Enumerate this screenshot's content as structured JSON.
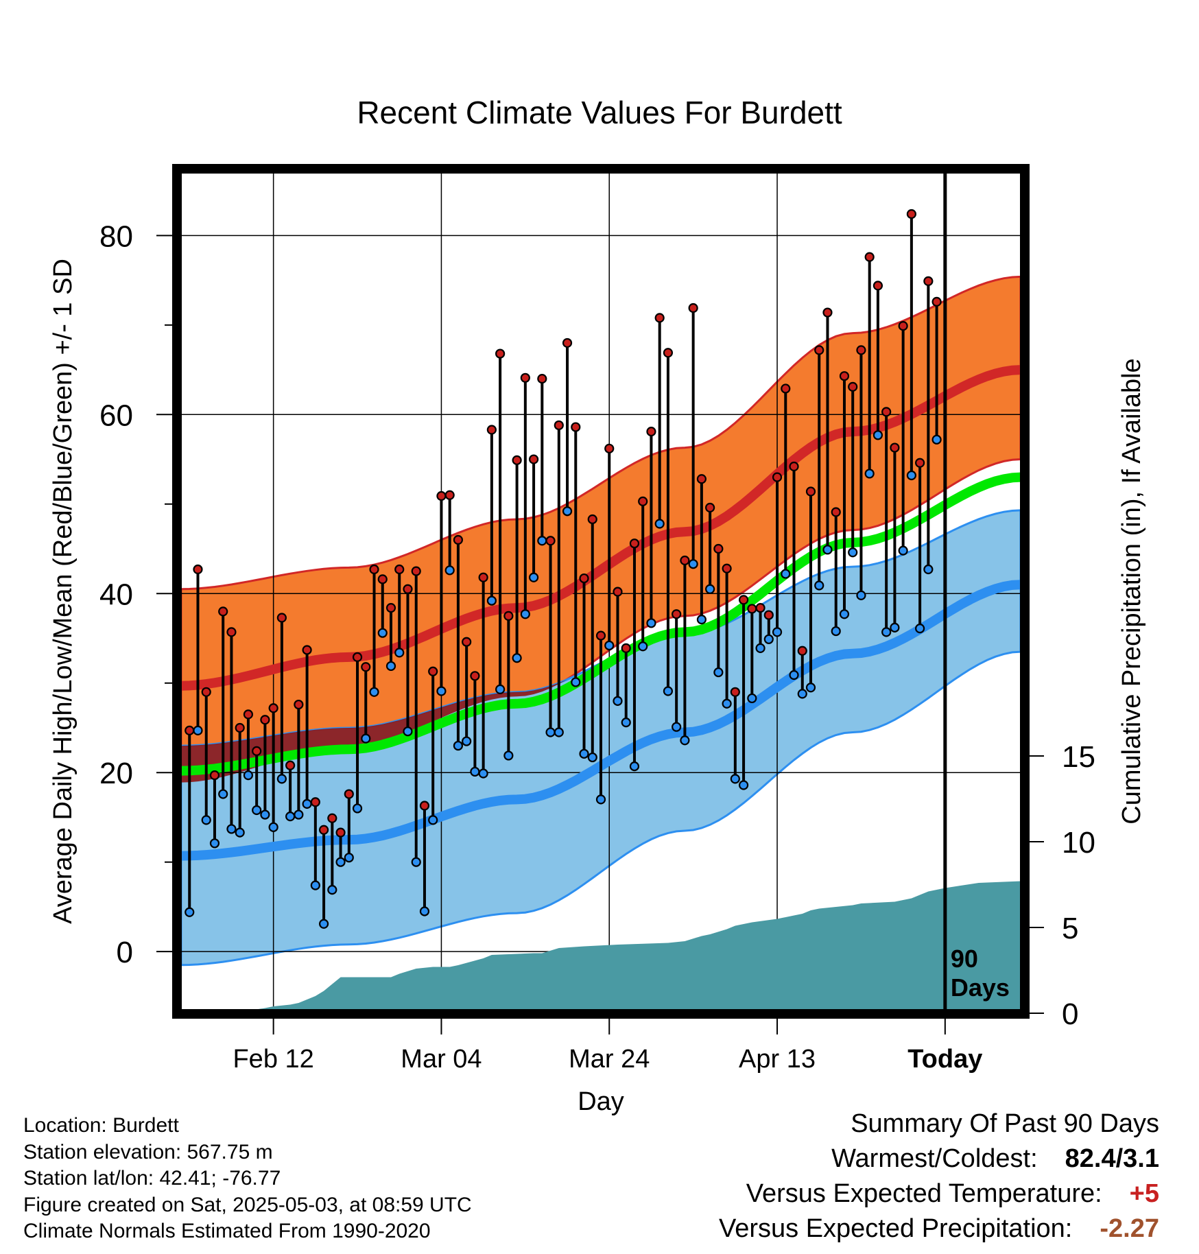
{
  "chart_data": {
    "type": "line",
    "title": "Recent Climate Values For Burdett",
    "xlabel": "Day",
    "ylabel": "Average Daily High/Low/Mean (Red/Blue/Green) +/- 1 SD",
    "y2label": "Cumulative Precipitation (in), If Available",
    "x_tick_labels": [
      "Feb 12",
      "Mar 04",
      "Mar 24",
      "Apr 13",
      "Today"
    ],
    "x_tick_days": [
      11,
      31,
      51,
      71,
      91
    ],
    "y_ticks": [
      0,
      20,
      40,
      60,
      80
    ],
    "y2_ticks": [
      0,
      5,
      10,
      15
    ],
    "ylim": [
      -6.5,
      87
    ],
    "y2lim": [
      0,
      50
    ],
    "xlim": [
      0,
      100
    ],
    "today_annotation": "90\nDays",
    "grid": true,
    "normals": {
      "high_mean_day_pairs": [
        [
          0,
          29.7
        ],
        [
          20,
          32.9
        ],
        [
          40,
          38.4
        ],
        [
          60,
          46.9
        ],
        [
          80,
          58.1
        ],
        [
          100,
          65.0
        ]
      ],
      "high_upper_day_pairs": [
        [
          0,
          40.5
        ],
        [
          20,
          42.9
        ],
        [
          40,
          48.3
        ],
        [
          60,
          56.3
        ],
        [
          80,
          69.1
        ],
        [
          100,
          75.4
        ]
      ],
      "high_lower_day_pairs": [
        [
          0,
          18.9
        ],
        [
          20,
          22.9
        ],
        [
          40,
          28.5
        ],
        [
          60,
          37.5
        ],
        [
          80,
          47.1
        ],
        [
          100,
          55.0
        ]
      ],
      "low_mean_day_pairs": [
        [
          0,
          10.7
        ],
        [
          20,
          12.5
        ],
        [
          40,
          17.0
        ],
        [
          60,
          24.5
        ],
        [
          80,
          33.3
        ],
        [
          100,
          41.0
        ]
      ],
      "low_upper_day_pairs": [
        [
          0,
          23.0
        ],
        [
          20,
          25.0
        ],
        [
          40,
          29.0
        ],
        [
          60,
          35.5
        ],
        [
          80,
          43.0
        ],
        [
          100,
          49.3
        ]
      ],
      "low_lower_day_pairs": [
        [
          0,
          -1.5
        ],
        [
          20,
          0.8
        ],
        [
          40,
          4.3
        ],
        [
          60,
          13.5
        ],
        [
          80,
          24.5
        ],
        [
          100,
          33.5
        ]
      ],
      "mean_day_pairs": [
        [
          0,
          20.2
        ],
        [
          20,
          22.6
        ],
        [
          40,
          27.7
        ],
        [
          60,
          35.7
        ],
        [
          80,
          45.7
        ],
        [
          100,
          53.0
        ]
      ]
    },
    "series": [
      {
        "name": "High",
        "values": [
          24.7,
          42.7,
          29.0,
          19.7,
          38.0,
          35.7,
          25.0,
          26.5,
          22.4,
          25.9,
          27.2,
          37.3,
          20.8,
          27.6,
          33.7,
          16.7,
          13.6,
          14.9,
          13.3,
          17.6,
          32.9,
          31.8,
          42.7,
          41.6,
          38.4,
          42.7,
          40.5,
          42.5,
          16.3,
          31.3,
          50.9,
          51.0,
          46.0,
          34.6,
          30.8,
          41.8,
          58.3,
          66.8,
          37.5,
          54.9,
          64.1,
          55.0,
          64.0,
          45.9,
          58.8,
          68.0,
          58.6,
          41.7,
          48.3,
          35.3,
          56.2,
          40.2,
          33.9,
          45.6,
          50.3,
          58.1,
          70.8,
          66.9,
          37.7,
          43.7,
          71.9,
          52.8,
          49.6,
          45.0,
          42.8,
          29.0,
          39.3,
          38.3,
          38.4,
          37.6,
          53.0,
          62.9,
          54.2,
          33.6,
          51.4,
          67.2,
          71.4,
          49.1,
          64.3,
          63.1,
          67.2,
          77.6,
          74.4,
          60.3,
          56.3,
          69.9,
          82.4,
          54.6,
          74.9,
          72.6
        ]
      },
      {
        "name": "Low",
        "values": [
          4.4,
          24.7,
          14.7,
          12.1,
          17.6,
          13.7,
          13.3,
          19.7,
          15.8,
          15.3,
          13.9,
          19.3,
          15.1,
          15.3,
          16.5,
          7.4,
          3.1,
          6.9,
          10.0,
          10.5,
          16.0,
          23.8,
          29.0,
          35.6,
          31.9,
          33.4,
          24.6,
          10.0,
          4.5,
          14.7,
          29.1,
          42.6,
          23.0,
          23.5,
          20.1,
          19.9,
          39.2,
          29.3,
          21.9,
          32.8,
          37.7,
          41.8,
          45.9,
          24.5,
          24.5,
          49.2,
          30.1,
          22.1,
          21.7,
          17.0,
          34.2,
          28.0,
          25.6,
          20.7,
          34.1,
          36.7,
          47.8,
          29.1,
          25.1,
          23.6,
          43.3,
          37.1,
          40.5,
          31.2,
          27.7,
          19.3,
          18.6,
          28.3,
          33.9,
          34.9,
          35.7,
          42.2,
          30.9,
          28.8,
          29.5,
          40.9,
          44.9,
          35.8,
          37.7,
          44.6,
          39.8,
          53.4,
          57.7,
          35.7,
          36.2,
          44.8,
          53.2,
          36.1,
          42.7,
          57.2
        ]
      },
      {
        "name": "Cumulative Precipitation",
        "x": [
          6,
          10,
          11,
          13,
          14,
          15,
          16,
          17,
          18,
          19,
          25,
          26,
          28,
          30,
          32,
          33,
          36,
          37,
          42,
          43,
          45,
          48,
          52,
          58,
          60,
          62,
          63,
          65,
          66,
          68,
          71,
          73,
          74,
          75,
          76,
          80,
          81,
          85,
          86,
          87,
          88,
          89,
          91,
          95,
          100
        ],
        "values": [
          0,
          0.3,
          0.4,
          0.5,
          0.6,
          0.8,
          1.0,
          1.3,
          1.7,
          2.1,
          2.1,
          2.3,
          2.6,
          2.7,
          2.7,
          2.8,
          3.2,
          3.4,
          3.5,
          3.5,
          3.8,
          3.9,
          4.0,
          4.1,
          4.2,
          4.5,
          4.6,
          4.9,
          5.1,
          5.3,
          5.5,
          5.7,
          5.8,
          6.0,
          6.1,
          6.3,
          6.4,
          6.5,
          6.6,
          6.7,
          6.9,
          7.1,
          7.3,
          7.6,
          7.7
        ]
      }
    ]
  },
  "info": {
    "location": "Location: Burdett",
    "elevation": "Station elevation: 567.75 m",
    "latlon": "Station lat/lon: 42.41; -76.77",
    "created": "Figure created on Sat, 2025-05-03, at 08:59 UTC",
    "normals": "Climate Normals Estimated From 1990-2020"
  },
  "summary": {
    "heading": "Summary Of Past 90 Days",
    "warmest_label": "Warmest/Coldest:",
    "warmest_value": "82.4/3.1",
    "temp_label": "Versus Expected Temperature:",
    "temp_value": "+5",
    "precip_label": "Versus Expected Precipitation:",
    "precip_value": "-2.27"
  },
  "colors": {
    "high_band": "#f47b2e",
    "high_line": "#d12727",
    "low_band": "#87c3e8",
    "low_line": "#2d8ff0",
    "mean_line": "#00e800",
    "overlap_band": "#8d1515",
    "precip": "#4a9aa3",
    "high_dot": "#c8201c",
    "low_dot": "#2d8ff0",
    "temp_value": "#c82020",
    "precip_value": "#a0522d"
  }
}
